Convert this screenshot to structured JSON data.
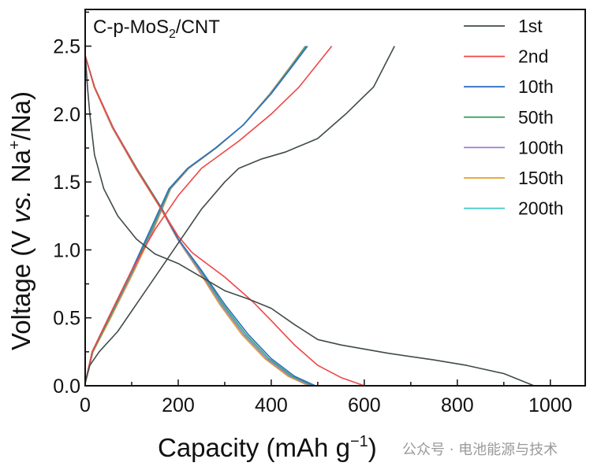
{
  "chart_data": {
    "type": "line",
    "annotation": {
      "text": "C-p-MoS",
      "sub": "2",
      "tail": "/CNT"
    },
    "xlabel": {
      "main": "Capacity (mAh g",
      "sup": "−1",
      "tail": ")"
    },
    "ylabel": {
      "pre": "Voltage (V ",
      "italic": "vs.",
      "mid": " Na",
      "sup": "+",
      "tail": "/Na)"
    },
    "xlim": [
      0,
      1075
    ],
    "ylim": [
      0,
      2.77
    ],
    "xticks": [
      "0",
      "200",
      "400",
      "600",
      "800",
      "1000"
    ],
    "xtick_values": [
      0,
      200,
      400,
      600,
      800,
      1000
    ],
    "yticks": [
      "0.0",
      "0.5",
      "1.0",
      "1.5",
      "2.0",
      "2.5"
    ],
    "ytick_values": [
      0,
      0.5,
      1.0,
      1.5,
      2.0,
      2.5
    ],
    "grid": false,
    "legend_position": "top-right",
    "series": [
      {
        "name": "1st",
        "color": "#414b49",
        "discharge": [
          [
            0,
            2.45
          ],
          [
            5,
            2.2
          ],
          [
            10,
            2.0
          ],
          [
            20,
            1.7
          ],
          [
            40,
            1.45
          ],
          [
            70,
            1.25
          ],
          [
            110,
            1.08
          ],
          [
            150,
            0.97
          ],
          [
            200,
            0.9
          ],
          [
            250,
            0.8
          ],
          [
            300,
            0.7
          ],
          [
            350,
            0.64
          ],
          [
            400,
            0.57
          ],
          [
            450,
            0.45
          ],
          [
            500,
            0.34
          ],
          [
            550,
            0.3
          ],
          [
            650,
            0.24
          ],
          [
            750,
            0.19
          ],
          [
            820,
            0.15
          ],
          [
            900,
            0.09
          ],
          [
            965,
            0.0
          ]
        ],
        "charge": [
          [
            0,
            0.02
          ],
          [
            10,
            0.15
          ],
          [
            30,
            0.25
          ],
          [
            70,
            0.4
          ],
          [
            120,
            0.65
          ],
          [
            170,
            0.9
          ],
          [
            200,
            1.05
          ],
          [
            250,
            1.3
          ],
          [
            300,
            1.5
          ],
          [
            330,
            1.6
          ],
          [
            380,
            1.67
          ],
          [
            430,
            1.72
          ],
          [
            500,
            1.82
          ],
          [
            560,
            2.0
          ],
          [
            620,
            2.2
          ],
          [
            665,
            2.5
          ]
        ]
      },
      {
        "name": "2nd",
        "color": "#f04545",
        "discharge": [
          [
            0,
            2.43
          ],
          [
            20,
            2.2
          ],
          [
            60,
            1.9
          ],
          [
            110,
            1.6
          ],
          [
            160,
            1.32
          ],
          [
            200,
            1.1
          ],
          [
            230,
            0.98
          ],
          [
            300,
            0.8
          ],
          [
            360,
            0.62
          ],
          [
            400,
            0.48
          ],
          [
            450,
            0.3
          ],
          [
            500,
            0.15
          ],
          [
            550,
            0.06
          ],
          [
            600,
            0.0
          ]
        ],
        "charge": [
          [
            0,
            0.02
          ],
          [
            15,
            0.25
          ],
          [
            50,
            0.5
          ],
          [
            100,
            0.85
          ],
          [
            150,
            1.15
          ],
          [
            200,
            1.4
          ],
          [
            250,
            1.6
          ],
          [
            330,
            1.8
          ],
          [
            400,
            2.0
          ],
          [
            460,
            2.2
          ],
          [
            530,
            2.5
          ]
        ]
      },
      {
        "name": "10th",
        "color": "#2f6fc0",
        "discharge": [
          [
            0,
            2.43
          ],
          [
            20,
            2.2
          ],
          [
            60,
            1.9
          ],
          [
            110,
            1.6
          ],
          [
            165,
            1.3
          ],
          [
            200,
            1.08
          ],
          [
            250,
            0.85
          ],
          [
            300,
            0.6
          ],
          [
            350,
            0.38
          ],
          [
            400,
            0.2
          ],
          [
            450,
            0.07
          ],
          [
            495,
            0.0
          ]
        ],
        "charge": [
          [
            0,
            0.02
          ],
          [
            15,
            0.25
          ],
          [
            50,
            0.5
          ],
          [
            100,
            0.85
          ],
          [
            140,
            1.15
          ],
          [
            180,
            1.45
          ],
          [
            220,
            1.6
          ],
          [
            280,
            1.75
          ],
          [
            340,
            1.92
          ],
          [
            400,
            2.15
          ],
          [
            445,
            2.35
          ],
          [
            478,
            2.5
          ]
        ]
      },
      {
        "name": "50th",
        "color": "#3aa56a",
        "discharge": [
          [
            0,
            2.43
          ],
          [
            20,
            2.2
          ],
          [
            60,
            1.9
          ],
          [
            111,
            1.6
          ],
          [
            166,
            1.3
          ],
          [
            200,
            1.08
          ],
          [
            248,
            0.85
          ],
          [
            296,
            0.6
          ],
          [
            345,
            0.38
          ],
          [
            395,
            0.2
          ],
          [
            445,
            0.07
          ],
          [
            490,
            0.0
          ]
        ],
        "charge": [
          [
            0,
            0.02
          ],
          [
            16,
            0.25
          ],
          [
            52,
            0.5
          ],
          [
            102,
            0.85
          ],
          [
            143,
            1.15
          ],
          [
            182,
            1.45
          ],
          [
            221,
            1.6
          ],
          [
            281,
            1.75
          ],
          [
            340,
            1.92
          ],
          [
            399,
            2.15
          ],
          [
            443,
            2.35
          ],
          [
            475,
            2.5
          ]
        ]
      },
      {
        "name": "100th",
        "color": "#9b7fd0",
        "discharge": [
          [
            0,
            2.43
          ],
          [
            20,
            2.2
          ],
          [
            59,
            1.9
          ],
          [
            109,
            1.6
          ],
          [
            164,
            1.3
          ],
          [
            199,
            1.08
          ],
          [
            245,
            0.85
          ],
          [
            292,
            0.6
          ],
          [
            340,
            0.38
          ],
          [
            390,
            0.2
          ],
          [
            440,
            0.07
          ],
          [
            485,
            0.0
          ]
        ],
        "charge": [
          [
            0,
            0.02
          ],
          [
            16,
            0.25
          ],
          [
            53,
            0.5
          ],
          [
            104,
            0.85
          ],
          [
            145,
            1.15
          ],
          [
            183,
            1.45
          ],
          [
            222,
            1.6
          ],
          [
            281,
            1.75
          ],
          [
            340,
            1.92
          ],
          [
            398,
            2.15
          ],
          [
            442,
            2.35
          ],
          [
            474,
            2.5
          ]
        ]
      },
      {
        "name": "150th",
        "color": "#e0a030",
        "discharge": [
          [
            0,
            2.43
          ],
          [
            19,
            2.2
          ],
          [
            58,
            1.9
          ],
          [
            108,
            1.6
          ],
          [
            163,
            1.3
          ],
          [
            198,
            1.08
          ],
          [
            243,
            0.85
          ],
          [
            289,
            0.6
          ],
          [
            336,
            0.38
          ],
          [
            386,
            0.2
          ],
          [
            436,
            0.07
          ],
          [
            480,
            0.0
          ]
        ],
        "charge": [
          [
            0,
            0.02
          ],
          [
            17,
            0.25
          ],
          [
            55,
            0.5
          ],
          [
            106,
            0.85
          ],
          [
            147,
            1.15
          ],
          [
            184,
            1.45
          ],
          [
            223,
            1.6
          ],
          [
            282,
            1.75
          ],
          [
            340,
            1.92
          ],
          [
            397,
            2.15
          ],
          [
            441,
            2.35
          ],
          [
            473,
            2.5
          ]
        ]
      },
      {
        "name": "200th",
        "color": "#40c8c8",
        "discharge": [
          [
            0,
            2.43
          ],
          [
            20,
            2.2
          ],
          [
            59,
            1.9
          ],
          [
            110,
            1.6
          ],
          [
            165,
            1.3
          ],
          [
            199,
            1.08
          ],
          [
            246,
            0.85
          ],
          [
            293,
            0.6
          ],
          [
            341,
            0.38
          ],
          [
            391,
            0.2
          ],
          [
            441,
            0.07
          ],
          [
            483,
            0.0
          ]
        ],
        "charge": [
          [
            0,
            0.02
          ],
          [
            16,
            0.25
          ],
          [
            52,
            0.5
          ],
          [
            103,
            0.85
          ],
          [
            144,
            1.15
          ],
          [
            183,
            1.45
          ],
          [
            222,
            1.6
          ],
          [
            281,
            1.75
          ],
          [
            340,
            1.92
          ],
          [
            399,
            2.15
          ],
          [
            443,
            2.35
          ],
          [
            476,
            2.5
          ]
        ]
      }
    ]
  },
  "watermark": "公众号 · 电池能源与技术"
}
